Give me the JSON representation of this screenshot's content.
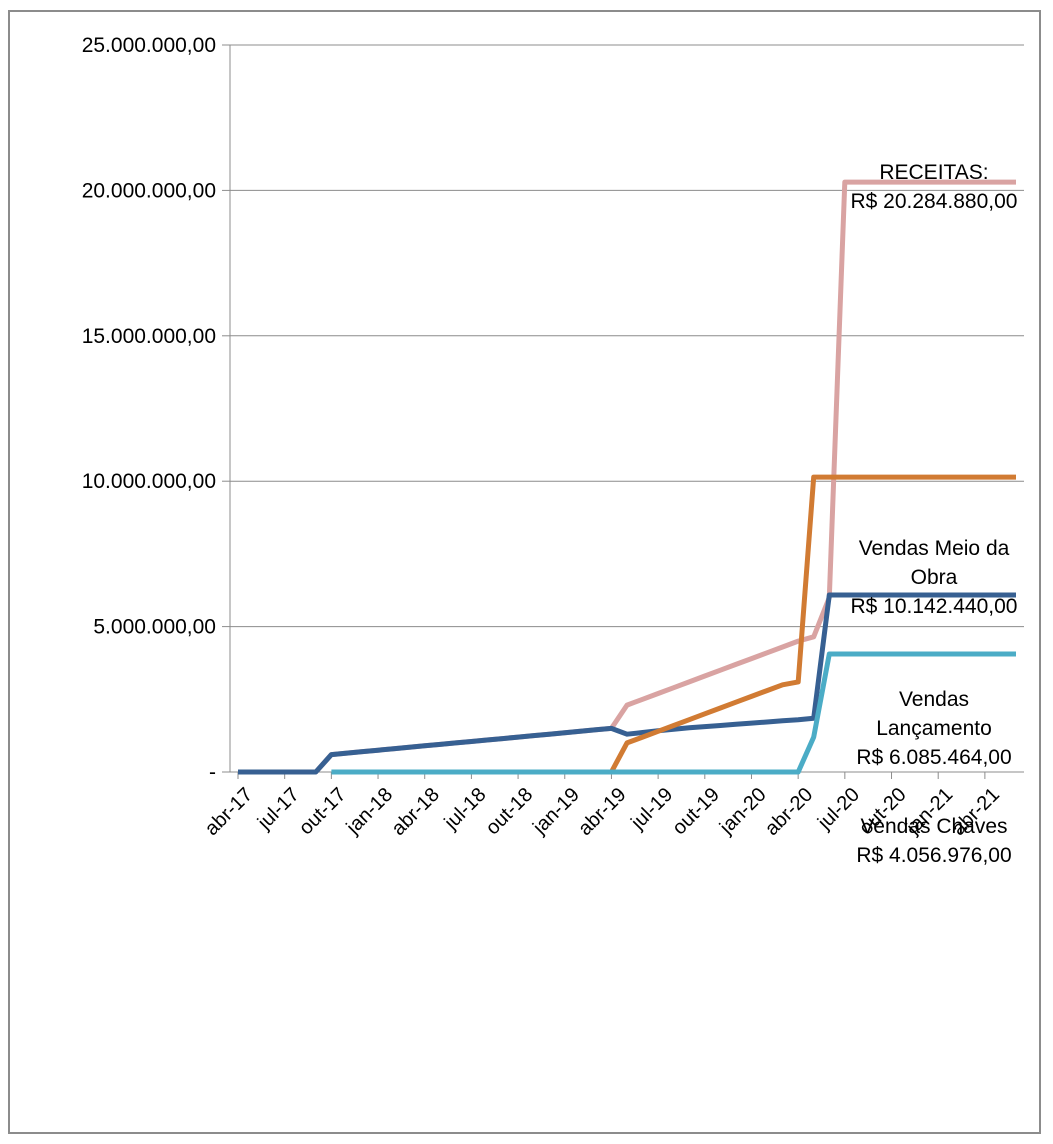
{
  "chart_data": {
    "type": "line",
    "title": "",
    "xlabel": "",
    "ylabel": "",
    "ylim": [
      0,
      25000000
    ],
    "y_ticks": [
      {
        "value": 25000000,
        "label": "25.000.000,00"
      },
      {
        "value": 20000000,
        "label": "20.000.000,00"
      },
      {
        "value": 15000000,
        "label": "15.000.000,00"
      },
      {
        "value": 10000000,
        "label": "10.000.000,00"
      },
      {
        "value": 5000000,
        "label": "5.000.000,00"
      },
      {
        "value": 0,
        "label": "-"
      }
    ],
    "x_tick_labels": [
      "abr-17",
      "jul-17",
      "out-17",
      "jan-18",
      "abr-18",
      "jul-18",
      "out-18",
      "jan-19",
      "abr-19",
      "jul-19",
      "out-19",
      "jan-20",
      "abr-20",
      "jul-20",
      "out-20",
      "jan-21",
      "abr-21"
    ],
    "x": [
      "abr-17",
      "mai-17",
      "jun-17",
      "jul-17",
      "ago-17",
      "set-17",
      "out-17",
      "nov-17",
      "dez-17",
      "jan-18",
      "fev-18",
      "mar-18",
      "abr-18",
      "mai-18",
      "jun-18",
      "jul-18",
      "ago-18",
      "set-18",
      "out-18",
      "nov-18",
      "dez-18",
      "jan-19",
      "fev-19",
      "mar-19",
      "abr-19",
      "mai-19",
      "jun-19",
      "jul-19",
      "ago-19",
      "set-19",
      "out-19",
      "nov-19",
      "dez-19",
      "jan-20",
      "fev-20",
      "mar-20",
      "abr-20",
      "mai-20",
      "jun-20",
      "jul-20",
      "ago-20",
      "set-20",
      "out-20",
      "nov-20",
      "dez-20",
      "jan-21",
      "fev-21",
      "mar-21",
      "abr-21",
      "mai-21",
      "jun-21"
    ],
    "grid": true,
    "legend": "none",
    "series": [
      {
        "color": "#d9a3a2",
        "values": [
          0,
          0,
          0,
          0,
          0,
          0,
          600000,
          650000,
          700000,
          750000,
          800000,
          850000,
          900000,
          950000,
          1000000,
          1050000,
          1100000,
          1150000,
          1200000,
          1250000,
          1300000,
          1350000,
          1400000,
          1450000,
          1500000,
          2300000,
          2500000,
          2700000,
          2900000,
          3100000,
          3300000,
          3500000,
          3700000,
          3900000,
          4100000,
          4300000,
          4500000,
          4650000,
          6000000,
          20284880,
          20284880,
          20284880,
          20284880,
          20284880,
          20284880,
          20284880,
          20284880,
          20284880,
          20284880,
          20284880,
          20284880
        ]
      },
      {
        "color": "#376092",
        "values": [
          0,
          0,
          0,
          0,
          0,
          0,
          600000,
          650000,
          700000,
          750000,
          800000,
          850000,
          900000,
          950000,
          1000000,
          1050000,
          1100000,
          1150000,
          1200000,
          1250000,
          1300000,
          1350000,
          1400000,
          1450000,
          1500000,
          1300000,
          1360000,
          1420000,
          1470000,
          1520000,
          1560000,
          1600000,
          1640000,
          1680000,
          1720000,
          1760000,
          1800000,
          1850000,
          6085464,
          6085464,
          6085464,
          6085464,
          6085464,
          6085464,
          6085464,
          6085464,
          6085464,
          6085464,
          6085464,
          6085464,
          6085464
        ]
      },
      {
        "color": "#d17b33",
        "values": [
          null,
          null,
          null,
          null,
          null,
          null,
          null,
          null,
          null,
          null,
          null,
          null,
          null,
          null,
          null,
          null,
          null,
          null,
          null,
          null,
          null,
          null,
          null,
          null,
          0,
          1000000,
          1200000,
          1400000,
          1600000,
          1800000,
          2000000,
          2200000,
          2400000,
          2600000,
          2800000,
          3000000,
          3100000,
          10142440,
          10142440,
          10142440,
          10142440,
          10142440,
          10142440,
          10142440,
          10142440,
          10142440,
          10142440,
          10142440,
          10142440,
          10142440,
          10142440
        ]
      },
      {
        "color": "#4bacc6",
        "values": [
          null,
          null,
          null,
          null,
          null,
          null,
          0,
          0,
          0,
          0,
          0,
          0,
          0,
          0,
          0,
          0,
          0,
          0,
          0,
          0,
          0,
          0,
          0,
          0,
          0,
          0,
          0,
          0,
          0,
          0,
          0,
          0,
          0,
          0,
          0,
          0,
          0,
          1200000,
          4056976,
          4056976,
          4056976,
          4056976,
          4056976,
          4056976,
          4056976,
          4056976,
          4056976,
          4056976,
          4056976,
          4056976,
          4056976
        ]
      }
    ],
    "annotations": [
      {
        "lines": [
          "RECEITAS:",
          "R$ 20.284.880,00"
        ]
      },
      {
        "lines": [
          "Vendas Meio da",
          "Obra",
          "R$ 10.142.440,00"
        ]
      },
      {
        "lines": [
          "Vendas",
          "Lançamento",
          "R$ 6.085.464,00"
        ]
      },
      {
        "lines": [
          "Vendas Chaves",
          "R$ 4.056.976,00"
        ]
      }
    ]
  }
}
